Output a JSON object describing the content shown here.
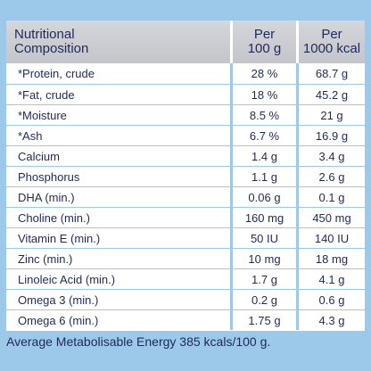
{
  "table": {
    "headers": {
      "name_line1": "Nutritional",
      "name_line2": "Composition",
      "per100_line1": "Per",
      "per100_line2": "100 g",
      "per1000_line1": "Per",
      "per1000_line2": "1000 kcal"
    },
    "rows": [
      {
        "name": "*Protein, crude",
        "per100": "28 %",
        "per1000": "68.7 g"
      },
      {
        "name": "*Fat, crude",
        "per100": "18 %",
        "per1000": "45.2 g"
      },
      {
        "name": "*Moisture",
        "per100": "8.5 %",
        "per1000": "21 g"
      },
      {
        "name": "*Ash",
        "per100": "6.7 %",
        "per1000": "16.9 g"
      },
      {
        "name": "Calcium",
        "per100": "1.4 g",
        "per1000": "3.4 g"
      },
      {
        "name": "Phosphorus",
        "per100": "1.1 g",
        "per1000": "2.6 g"
      },
      {
        "name": "DHA (min.)",
        "per100": "0.06 g",
        "per1000": "0.1 g"
      },
      {
        "name": "Choline (min.)",
        "per100": "160 mg",
        "per1000": "450 mg"
      },
      {
        "name": "Vitamin E (min.)",
        "per100": "50 IU",
        "per1000": "140 IU"
      },
      {
        "name": "Zinc (min.)",
        "per100": "10 mg",
        "per1000": "18 mg"
      },
      {
        "name": "Linoleic Acid (min.)",
        "per100": "1.7 g",
        "per1000": "4.1 g"
      },
      {
        "name": "Omega 3 (min.)",
        "per100": "0.2 g",
        "per1000": "0.6 g"
      },
      {
        "name": "Omega 6 (min.)",
        "per100": "1.75 g",
        "per1000": "4.3 g"
      }
    ]
  },
  "footer": {
    "text": "Average Metabolisable Energy 385 kcals/100 g."
  }
}
